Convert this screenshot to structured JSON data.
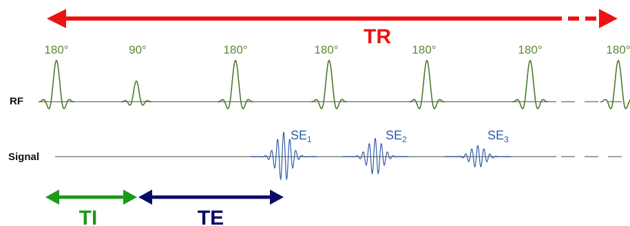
{
  "colors": {
    "tr": "#ee1111",
    "rf": "#4a7a2a",
    "pulse_label": "#5a8a32",
    "baseline": "#808080",
    "signal": "#2f5aa8",
    "row_label": "#111111",
    "ti": "#1a9a1a",
    "te": "#0a0a6a"
  },
  "tr": {
    "label": "TR"
  },
  "rows": {
    "rf_label": "RF",
    "signal_label": "Signal"
  },
  "rf_pulses": [
    {
      "label": "180°",
      "type": "180"
    },
    {
      "label": "90°",
      "type": "90"
    },
    {
      "label": "180°",
      "type": "180"
    },
    {
      "label": "180°",
      "type": "180"
    },
    {
      "label": "180°",
      "type": "180"
    },
    {
      "label": "180°",
      "type": "180"
    },
    {
      "label": "180°",
      "type": "180"
    }
  ],
  "echoes": [
    {
      "label": "SE",
      "sub": "1",
      "relative_amplitude": 1.0
    },
    {
      "label": "SE",
      "sub": "2",
      "relative_amplitude": 0.75
    },
    {
      "label": "SE",
      "sub": "3",
      "relative_amplitude": 0.45
    }
  ],
  "intervals": {
    "ti_label": "TI",
    "te_label": "TE"
  }
}
